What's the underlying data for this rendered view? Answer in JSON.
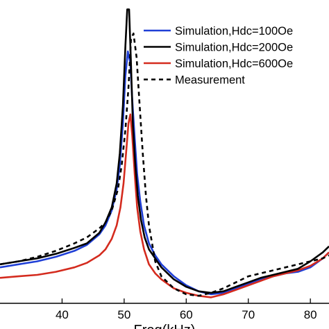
{
  "chart_data": {
    "type": "line",
    "title": "",
    "xlabel": "Freq(kHz)",
    "ylabel": "",
    "xlim": [
      30,
      83
    ],
    "ylim": [
      0,
      1
    ],
    "x_ticks": [
      40,
      50,
      60,
      70,
      80
    ],
    "x_tick_labels": [
      "40",
      "50",
      "60",
      "70",
      "80"
    ],
    "grid": false,
    "legend_position": "top-right",
    "series": [
      {
        "name": "Simulation,Hdc=100Oe",
        "color": "#1f3fd6",
        "style": "solid",
        "x": [
          30,
          33,
          36,
          39,
          42,
          44,
          46,
          47,
          48,
          48.8,
          49.3,
          49.8,
          50.2,
          50.6,
          51.0,
          51.3,
          51.7,
          52.1,
          52.6,
          53.2,
          54,
          55,
          56,
          58,
          60,
          62,
          64,
          66,
          68,
          70,
          72,
          74,
          76,
          78,
          80,
          82,
          83
        ],
        "y": [
          0.12,
          0.13,
          0.14,
          0.155,
          0.175,
          0.195,
          0.23,
          0.26,
          0.31,
          0.38,
          0.46,
          0.6,
          0.76,
          0.84,
          0.8,
          0.68,
          0.55,
          0.43,
          0.34,
          0.26,
          0.2,
          0.16,
          0.13,
          0.09,
          0.06,
          0.04,
          0.03,
          0.035,
          0.05,
          0.065,
          0.08,
          0.09,
          0.1,
          0.105,
          0.12,
          0.15,
          0.17
        ]
      },
      {
        "name": "Simulation,Hdc=200Oe",
        "color": "#000000",
        "style": "solid",
        "x": [
          30,
          33,
          36,
          39,
          42,
          44,
          46,
          47,
          48,
          48.8,
          49.3,
          49.8,
          50.2,
          50.5,
          50.8,
          51.1,
          51.4,
          51.8,
          52.2,
          52.7,
          53.3,
          54,
          55,
          56,
          58,
          60,
          62,
          64,
          66,
          68,
          70,
          72,
          74,
          76,
          78,
          80,
          82,
          83
        ],
        "y": [
          0.13,
          0.14,
          0.15,
          0.165,
          0.185,
          0.2,
          0.235,
          0.27,
          0.32,
          0.4,
          0.5,
          0.66,
          0.86,
          0.98,
          0.98,
          0.8,
          0.6,
          0.46,
          0.36,
          0.28,
          0.22,
          0.18,
          0.15,
          0.12,
          0.08,
          0.055,
          0.04,
          0.035,
          0.04,
          0.055,
          0.07,
          0.085,
          0.095,
          0.105,
          0.115,
          0.14,
          0.17,
          0.19
        ]
      },
      {
        "name": "Simulation,Hdc=600Oe",
        "color": "#d42b1e",
        "style": "solid",
        "x": [
          30,
          33,
          36,
          39,
          42,
          44,
          46,
          47,
          48,
          48.8,
          49.4,
          49.9,
          50.3,
          50.7,
          51.0,
          51.3,
          51.7,
          52.1,
          52.6,
          53.2,
          54,
          55,
          56,
          58,
          60,
          62,
          64,
          66,
          68,
          70,
          72,
          74,
          76,
          78,
          80,
          82,
          83
        ],
        "y": [
          0.085,
          0.09,
          0.095,
          0.105,
          0.12,
          0.135,
          0.16,
          0.18,
          0.215,
          0.26,
          0.32,
          0.4,
          0.5,
          0.6,
          0.63,
          0.56,
          0.43,
          0.32,
          0.24,
          0.18,
          0.13,
          0.1,
          0.08,
          0.05,
          0.035,
          0.025,
          0.02,
          0.03,
          0.045,
          0.06,
          0.075,
          0.09,
          0.1,
          0.11,
          0.125,
          0.15,
          0.17
        ]
      },
      {
        "name": "Measurement",
        "color": "#000000",
        "style": "dashed",
        "x": [
          30,
          33,
          36,
          39,
          42,
          44,
          46,
          47,
          48,
          49,
          49.6,
          50.2,
          50.7,
          51.1,
          51.5,
          52,
          52.5,
          53,
          53.5,
          54,
          55,
          56,
          57,
          58,
          60,
          62,
          64,
          66,
          68,
          70,
          72,
          74,
          76,
          78,
          80,
          82,
          83
        ],
        "y": [
          0.13,
          0.14,
          0.155,
          0.175,
          0.2,
          0.22,
          0.25,
          0.27,
          0.31,
          0.38,
          0.46,
          0.58,
          0.72,
          0.88,
          0.9,
          0.82,
          0.66,
          0.5,
          0.36,
          0.26,
          0.14,
          0.09,
          0.07,
          0.05,
          0.03,
          0.025,
          0.035,
          0.05,
          0.07,
          0.09,
          0.1,
          0.11,
          0.12,
          0.13,
          0.14,
          0.15,
          0.16
        ]
      }
    ]
  }
}
